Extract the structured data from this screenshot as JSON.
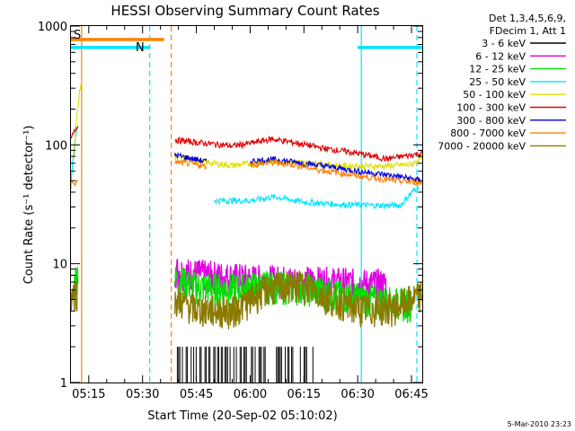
{
  "chart_data": {
    "type": "line",
    "title": "HESSI Observing Summary Count Rates",
    "xlabel": "Start Time (20-Sep-02 05:10:02)",
    "ylabel": "Count Rate (s⁻¹ detector⁻¹)",
    "yscale": "log",
    "ylim": [
      1,
      1000
    ],
    "xlim": [
      "05:10:02",
      "06:48:00"
    ],
    "x_ticks": [
      "05:15",
      "05:30",
      "05:45",
      "06:00",
      "06:15",
      "06:30",
      "06:45"
    ],
    "y_ticks": [
      "1",
      "10",
      "100",
      "1000"
    ],
    "legend_header": [
      "Det 1,3,4,5,6,9,",
      "FDecim 1, Att 1"
    ],
    "legend_position": "right-outside",
    "flag_labels": [
      {
        "text": "S",
        "color": "#ff8000"
      },
      {
        "text": "N",
        "color": "#00e5ff"
      }
    ],
    "flag_bars": [
      {
        "label": "S",
        "color": "#ff8000",
        "x_start": "05:10:02",
        "x_end": "05:36:00",
        "level": 770
      },
      {
        "label": "N",
        "color": "#00e5ff",
        "x_start": "05:10:02",
        "x_end": "05:32:00",
        "level": 660
      },
      {
        "label": "N",
        "color": "#00e5ff",
        "x_start": "06:30:00",
        "x_end": "06:48:00",
        "level": 660
      }
    ],
    "vertical_markers": [
      {
        "x": "05:13:00",
        "color": "#ff8000",
        "style": "solid"
      },
      {
        "x": "05:32:00",
        "color": "#00e5ff",
        "style": "dashed"
      },
      {
        "x": "05:38:00",
        "color": "#ff8000",
        "style": "dashed"
      },
      {
        "x": "06:31:00",
        "color": "#00e5ff",
        "style": "solid"
      },
      {
        "x": "06:46:30",
        "color": "#00e5ff",
        "style": "dashed"
      }
    ],
    "series": [
      {
        "name": "3 - 6 keV",
        "color": "#000000",
        "x": [
          "05:39",
          "05:45",
          "05:52",
          "05:58",
          "06:05",
          "06:12",
          "06:18"
        ],
        "values": [
          1.8,
          1.8,
          1.8,
          1.8,
          1.8,
          1.8,
          1.8
        ]
      },
      {
        "name": "6 - 12 keV",
        "color": "#e000e0",
        "x": [
          "05:39",
          "05:42",
          "05:50",
          "06:00",
          "06:10",
          "06:20",
          "06:30",
          "06:38"
        ],
        "values": [
          9.0,
          8.5,
          8.0,
          7.5,
          7.3,
          7.2,
          6.9,
          6.8
        ]
      },
      {
        "name": "12 - 25 keV",
        "color": "#00e000",
        "x": [
          "05:11",
          "05:12",
          "05:39",
          "05:45",
          "05:55",
          "06:05",
          "06:15",
          "06:25",
          "06:35",
          "06:45"
        ],
        "values": [
          7.0,
          9.0,
          7.5,
          6.5,
          6.3,
          6.6,
          6.4,
          5.5,
          5.0,
          4.6
        ]
      },
      {
        "name": "25 - 50 keV",
        "color": "#00e5ff",
        "x": [
          "05:10",
          "05:12",
          "05:39",
          "05:50",
          "06:00",
          "06:07",
          "06:15",
          "06:25",
          "06:35",
          "06:42",
          "06:47"
        ],
        "values": [
          45,
          150,
          40,
          34,
          34,
          36.5,
          33,
          31.5,
          31,
          31,
          45
        ]
      },
      {
        "name": "50 - 100 keV",
        "color": "#e0e000",
        "x": [
          "05:11",
          "05:13",
          "05:39",
          "05:48",
          "05:55",
          "06:00",
          "06:05",
          "06:10",
          "06:18",
          "06:25",
          "06:35",
          "06:45",
          "06:48"
        ],
        "values": [
          80,
          350,
          80,
          71,
          67,
          70,
          73,
          72,
          70,
          67,
          66,
          68,
          80
        ]
      },
      {
        "name": "100 - 300 keV",
        "color": "#e00000",
        "x": [
          "05:10",
          "05:12",
          "05:39",
          "05:45",
          "05:55",
          "06:00",
          "06:06",
          "06:12",
          "06:20",
          "06:30",
          "06:38",
          "06:48"
        ],
        "values": [
          110,
          150,
          110,
          105,
          98,
          103,
          112,
          105,
          94,
          85,
          76,
          85
        ]
      },
      {
        "name": "300 - 800 keV",
        "color": "#0000e0",
        "x": [
          "05:39",
          "05:48",
          "06:00",
          "06:07",
          "06:12",
          "06:20",
          "06:30",
          "06:40",
          "06:48"
        ],
        "values": [
          82,
          72,
          73,
          75,
          72,
          67,
          60,
          55,
          50
        ]
      },
      {
        "name": "800 - 7000 keV",
        "color": "#ff8000",
        "x": [
          "05:10",
          "05:12",
          "05:39",
          "05:48",
          "06:00",
          "06:07",
          "06:12",
          "06:20",
          "06:30",
          "06:40",
          "06:48"
        ],
        "values": [
          48,
          48,
          72,
          66,
          68,
          71,
          68,
          61,
          55,
          50,
          48
        ]
      },
      {
        "name": "7000 - 20000 keV",
        "color": "#8a7a00",
        "x": [
          "05:10",
          "05:12",
          "05:39",
          "05:45",
          "05:55",
          "06:00",
          "06:05",
          "06:15",
          "06:20",
          "06:30",
          "06:40",
          "06:48"
        ],
        "values": [
          5.5,
          6.0,
          5.0,
          4.2,
          4.0,
          5.0,
          6.3,
          6.7,
          5.5,
          4.2,
          4.3,
          5.5
        ]
      }
    ]
  },
  "timestamp_label": "5-Mar-2010 23:23"
}
